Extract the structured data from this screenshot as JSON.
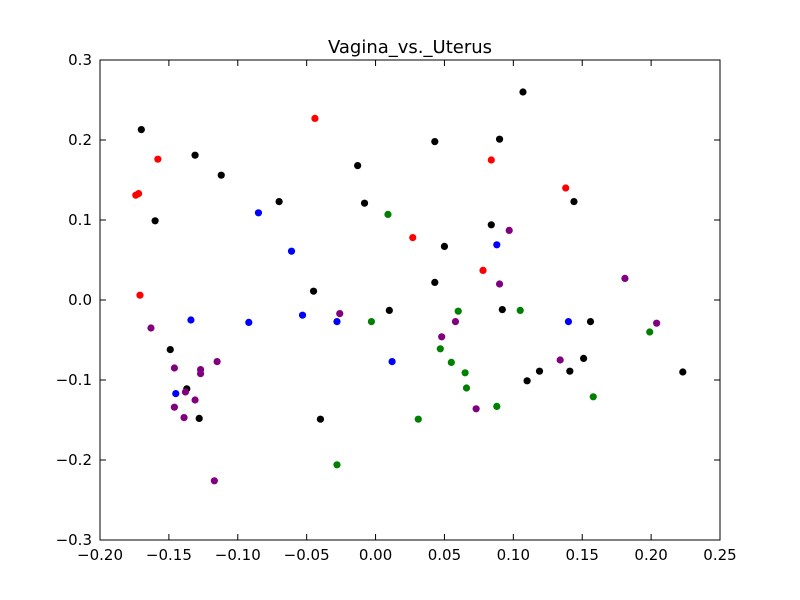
{
  "chart_data": {
    "type": "scatter",
    "title": "Vagina_vs._Uterus",
    "xlabel": "",
    "ylabel": "",
    "xlim": [
      -0.2,
      0.25
    ],
    "ylim": [
      -0.3,
      0.3
    ],
    "xticks": [
      -0.2,
      -0.15,
      -0.1,
      -0.05,
      0.0,
      0.05,
      0.1,
      0.15,
      0.2,
      0.25
    ],
    "xtick_labels": [
      "−0.20",
      "−0.15",
      "−0.10",
      "−0.05",
      "0.00",
      "0.05",
      "0.10",
      "0.15",
      "0.20",
      "0.25"
    ],
    "yticks": [
      -0.3,
      -0.2,
      -0.1,
      0.0,
      0.1,
      0.2,
      0.3
    ],
    "ytick_labels": [
      "−0.3",
      "−0.2",
      "−0.1",
      "0.0",
      "0.1",
      "0.2",
      "0.3"
    ],
    "grid": false,
    "series": [
      {
        "color": "#000000",
        "points": [
          [
            -0.17,
            0.213
          ],
          [
            -0.16,
            0.099
          ],
          [
            -0.131,
            0.181
          ],
          [
            -0.112,
            0.156
          ],
          [
            -0.07,
            0.123
          ],
          [
            -0.045,
            0.011
          ],
          [
            -0.04,
            -0.149
          ],
          [
            -0.013,
            0.168
          ],
          [
            -0.008,
            0.121
          ],
          [
            0.01,
            -0.013
          ],
          [
            0.043,
            0.198
          ],
          [
            0.043,
            0.022
          ],
          [
            0.05,
            0.067
          ],
          [
            0.084,
            0.094
          ],
          [
            0.09,
            0.201
          ],
          [
            0.092,
            -0.012
          ],
          [
            0.107,
            0.26
          ],
          [
            0.11,
            -0.101
          ],
          [
            0.119,
            -0.089
          ],
          [
            0.141,
            -0.089
          ],
          [
            0.144,
            0.123
          ],
          [
            0.151,
            -0.073
          ],
          [
            0.156,
            -0.027
          ],
          [
            0.223,
            -0.09
          ],
          [
            -0.149,
            -0.062
          ],
          [
            -0.137,
            -0.111
          ],
          [
            -0.128,
            -0.148
          ]
        ]
      },
      {
        "color": "#ff0000",
        "points": [
          [
            -0.174,
            0.131
          ],
          [
            -0.172,
            0.133
          ],
          [
            -0.171,
            0.006
          ],
          [
            -0.158,
            0.176
          ],
          [
            -0.044,
            0.227
          ],
          [
            0.027,
            0.078
          ],
          [
            0.078,
            0.037
          ],
          [
            0.084,
            0.175
          ],
          [
            0.138,
            0.14
          ]
        ]
      },
      {
        "color": "#0000ff",
        "points": [
          [
            -0.145,
            -0.117
          ],
          [
            -0.134,
            -0.025
          ],
          [
            -0.092,
            -0.028
          ],
          [
            -0.085,
            0.109
          ],
          [
            -0.061,
            0.061
          ],
          [
            -0.053,
            -0.019
          ],
          [
            -0.028,
            -0.027
          ],
          [
            0.012,
            -0.077
          ],
          [
            0.088,
            0.069
          ],
          [
            0.14,
            -0.027
          ]
        ]
      },
      {
        "color": "#008000",
        "points": [
          [
            -0.028,
            -0.206
          ],
          [
            -0.003,
            -0.027
          ],
          [
            0.009,
            0.107
          ],
          [
            0.031,
            -0.149
          ],
          [
            0.047,
            -0.061
          ],
          [
            0.055,
            -0.078
          ],
          [
            0.06,
            -0.014
          ],
          [
            0.065,
            -0.091
          ],
          [
            0.066,
            -0.11
          ],
          [
            0.088,
            -0.133
          ],
          [
            0.105,
            -0.013
          ],
          [
            0.158,
            -0.121
          ],
          [
            0.199,
            -0.04
          ]
        ]
      },
      {
        "color": "#800080",
        "points": [
          [
            -0.163,
            -0.035
          ],
          [
            -0.146,
            -0.085
          ],
          [
            -0.146,
            -0.134
          ],
          [
            -0.139,
            -0.147
          ],
          [
            -0.138,
            -0.115
          ],
          [
            -0.131,
            -0.125
          ],
          [
            -0.127,
            -0.087
          ],
          [
            -0.127,
            -0.092
          ],
          [
            -0.117,
            -0.226
          ],
          [
            -0.115,
            -0.077
          ],
          [
            -0.026,
            -0.017
          ],
          [
            0.048,
            -0.046
          ],
          [
            0.058,
            -0.027
          ],
          [
            0.073,
            -0.136
          ],
          [
            0.09,
            0.02
          ],
          [
            0.097,
            0.087
          ],
          [
            0.134,
            -0.075
          ],
          [
            0.181,
            0.027
          ],
          [
            0.204,
            -0.029
          ]
        ]
      }
    ]
  }
}
